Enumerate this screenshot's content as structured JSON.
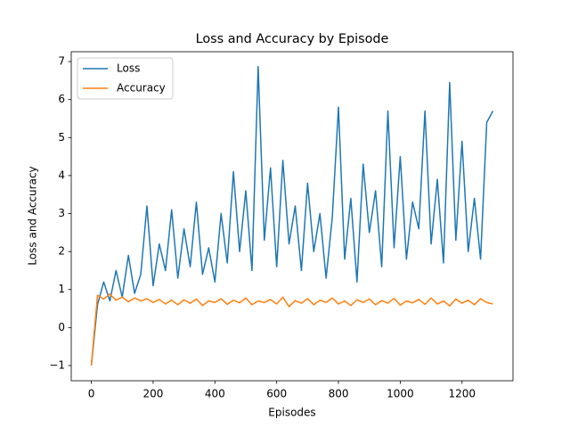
{
  "chart_data": {
    "type": "line",
    "title": "Loss and Accuracy by Episode",
    "x_label": "Episodes",
    "y_label": "Loss and Accuracy",
    "x": [
      0,
      20,
      40,
      60,
      80,
      100,
      120,
      140,
      160,
      180,
      200,
      220,
      240,
      260,
      280,
      300,
      320,
      340,
      360,
      380,
      400,
      420,
      440,
      460,
      480,
      500,
      520,
      540,
      560,
      580,
      600,
      620,
      640,
      660,
      680,
      700,
      720,
      740,
      760,
      780,
      800,
      820,
      840,
      860,
      880,
      900,
      920,
      940,
      960,
      980,
      1000,
      1020,
      1040,
      1060,
      1080,
      1100,
      1120,
      1140,
      1160,
      1180,
      1200,
      1220,
      1240,
      1260,
      1280,
      1300
    ],
    "series": [
      {
        "name": "Loss",
        "color": "#1f77b4",
        "values": [
          -1.0,
          0.6,
          1.2,
          0.7,
          1.5,
          0.8,
          1.9,
          0.9,
          1.4,
          3.2,
          1.1,
          2.2,
          1.5,
          3.1,
          1.3,
          2.6,
          1.6,
          3.3,
          1.4,
          2.1,
          1.2,
          3.0,
          1.7,
          4.1,
          2.0,
          3.6,
          1.5,
          6.87,
          2.3,
          4.2,
          1.6,
          4.4,
          2.2,
          3.2,
          1.5,
          3.8,
          2.0,
          3.0,
          1.3,
          2.9,
          5.8,
          1.8,
          3.4,
          1.2,
          4.3,
          2.5,
          3.6,
          1.6,
          5.7,
          2.1,
          4.5,
          1.8,
          3.3,
          2.6,
          5.7,
          2.2,
          3.9,
          1.7,
          6.45,
          2.3,
          4.9,
          2.0,
          3.4,
          1.8,
          5.4,
          5.7
        ]
      },
      {
        "name": "Accuracy",
        "color": "#ff7f0e",
        "values": [
          -1.0,
          0.85,
          0.75,
          0.88,
          0.72,
          0.8,
          0.68,
          0.78,
          0.7,
          0.76,
          0.66,
          0.74,
          0.62,
          0.72,
          0.6,
          0.73,
          0.64,
          0.75,
          0.58,
          0.7,
          0.66,
          0.76,
          0.61,
          0.72,
          0.65,
          0.78,
          0.6,
          0.7,
          0.66,
          0.74,
          0.62,
          0.8,
          0.55,
          0.71,
          0.64,
          0.76,
          0.6,
          0.72,
          0.66,
          0.78,
          0.62,
          0.7,
          0.58,
          0.73,
          0.66,
          0.75,
          0.6,
          0.71,
          0.64,
          0.77,
          0.59,
          0.7,
          0.65,
          0.74,
          0.61,
          0.78,
          0.62,
          0.7,
          0.57,
          0.75,
          0.64,
          0.72,
          0.6,
          0.76,
          0.66,
          0.62
        ]
      }
    ],
    "xlim": [
      -65,
      1365
    ],
    "ylim": [
      -1.4,
      7.26
    ],
    "xticks": [
      0,
      200,
      400,
      600,
      800,
      1000,
      1200
    ],
    "yticks": [
      {
        "value": -1,
        "label": "−1"
      },
      0,
      1,
      2,
      3,
      4,
      5,
      6,
      7
    ],
    "legend": "upper left",
    "grid": false
  }
}
